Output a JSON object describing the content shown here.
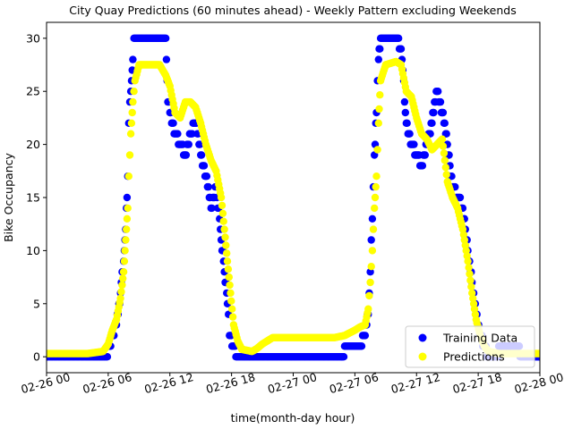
{
  "chart_data": {
    "type": "scatter",
    "title": "City Quay Predictions (60 minutes ahead) - Weekly Pattern excluding Weekends",
    "xlabel": "time(month-day hour)",
    "ylabel": "Bike Occupancy",
    "xlim": [
      0,
      48
    ],
    "ylim": [
      -1.5,
      31.5
    ],
    "x_ticks": [
      {
        "value": 0,
        "label": "02-26 00"
      },
      {
        "value": 6,
        "label": "02-26 06"
      },
      {
        "value": 12,
        "label": "02-26 12"
      },
      {
        "value": 18,
        "label": "02-26 18"
      },
      {
        "value": 24,
        "label": "02-27 00"
      },
      {
        "value": 30,
        "label": "02-27 06"
      },
      {
        "value": 36,
        "label": "02-27 12"
      },
      {
        "value": 42,
        "label": "02-27 18"
      },
      {
        "value": 48,
        "label": "02-28 00"
      }
    ],
    "y_ticks": [
      0,
      5,
      10,
      15,
      20,
      25,
      30
    ],
    "grid": false,
    "legend_position": "lower right",
    "x_unit_note": "hours since 02-26 00",
    "series": [
      {
        "name": "Training Data",
        "color": "#0000ff",
        "points": [
          [
            0,
            0
          ],
          [
            2,
            0
          ],
          [
            4,
            0
          ],
          [
            5.5,
            0
          ],
          [
            6,
            0.5
          ],
          [
            6.4,
            2
          ],
          [
            6.8,
            3
          ],
          [
            7.2,
            6
          ],
          [
            7.5,
            9
          ],
          [
            7.7,
            12
          ],
          [
            7.9,
            17
          ],
          [
            8.0,
            22
          ],
          [
            8.2,
            25
          ],
          [
            8.4,
            28
          ],
          [
            8.5,
            30
          ],
          [
            9,
            30
          ],
          [
            10,
            30
          ],
          [
            11,
            30
          ],
          [
            11.6,
            30
          ],
          [
            11.8,
            24
          ],
          [
            12,
            23
          ],
          [
            12.5,
            21
          ],
          [
            13,
            20
          ],
          [
            13.5,
            19
          ],
          [
            14,
            21
          ],
          [
            14.5,
            22
          ],
          [
            15,
            19
          ],
          [
            15.5,
            17
          ],
          [
            16,
            14
          ],
          [
            16.5,
            16
          ],
          [
            17,
            11
          ],
          [
            17.3,
            8
          ],
          [
            17.6,
            5
          ],
          [
            17.8,
            2
          ],
          [
            18.2,
            1
          ],
          [
            18.5,
            0
          ],
          [
            19,
            0
          ],
          [
            20,
            0
          ],
          [
            21,
            0
          ],
          [
            22,
            0
          ],
          [
            23,
            0
          ],
          [
            24,
            0
          ],
          [
            25,
            0
          ],
          [
            26,
            0
          ],
          [
            27,
            0
          ],
          [
            28,
            0
          ],
          [
            29,
            0.5
          ],
          [
            30,
            1
          ],
          [
            30.5,
            1
          ],
          [
            31,
            2
          ],
          [
            31.3,
            4
          ],
          [
            31.5,
            8
          ],
          [
            31.7,
            13
          ],
          [
            31.9,
            19
          ],
          [
            32.1,
            23
          ],
          [
            32.3,
            28
          ],
          [
            32.5,
            30
          ],
          [
            33,
            30
          ],
          [
            34,
            30
          ],
          [
            34.5,
            29
          ],
          [
            35,
            22
          ],
          [
            35.5,
            20
          ],
          [
            36,
            19
          ],
          [
            36.5,
            18
          ],
          [
            37,
            20
          ],
          [
            37.5,
            22
          ],
          [
            38,
            25
          ],
          [
            38.5,
            23
          ],
          [
            39,
            20
          ],
          [
            39.5,
            16
          ],
          [
            40,
            15
          ],
          [
            40.5,
            14
          ],
          [
            41,
            10
          ],
          [
            41.4,
            7
          ],
          [
            41.8,
            4
          ],
          [
            42.2,
            2
          ],
          [
            42.6,
            1
          ],
          [
            43,
            0
          ],
          [
            44,
            0.5
          ],
          [
            45,
            1
          ],
          [
            46,
            0.5
          ],
          [
            47,
            0
          ],
          [
            48,
            0
          ]
        ]
      },
      {
        "name": "Predictions",
        "color": "#ffff00",
        "points": [
          [
            0,
            0.3
          ],
          [
            2,
            0.3
          ],
          [
            4,
            0.3
          ],
          [
            5.5,
            0.5
          ],
          [
            6,
            1.2
          ],
          [
            6.4,
            2.5
          ],
          [
            6.8,
            3.5
          ],
          [
            7.2,
            5.5
          ],
          [
            7.5,
            8
          ],
          [
            7.7,
            11
          ],
          [
            7.9,
            14
          ],
          [
            8.0,
            17
          ],
          [
            8.2,
            21
          ],
          [
            8.4,
            24
          ],
          [
            8.6,
            26
          ],
          [
            9,
            27.5
          ],
          [
            10,
            27.5
          ],
          [
            11,
            27.5
          ],
          [
            11.6,
            26.5
          ],
          [
            12,
            25.5
          ],
          [
            12.5,
            23
          ],
          [
            13,
            22.5
          ],
          [
            13.5,
            24
          ],
          [
            14,
            24
          ],
          [
            14.5,
            23.5
          ],
          [
            15,
            22
          ],
          [
            15.5,
            20
          ],
          [
            16,
            18.5
          ],
          [
            16.5,
            17.5
          ],
          [
            17,
            15
          ],
          [
            17.3,
            12
          ],
          [
            17.6,
            9
          ],
          [
            17.9,
            6
          ],
          [
            18.2,
            3
          ],
          [
            18.6,
            1.5
          ],
          [
            19,
            0.7
          ],
          [
            20,
            0.5
          ],
          [
            20.5,
            0.8
          ],
          [
            21,
            1.2
          ],
          [
            22,
            1.8
          ],
          [
            24,
            1.8
          ],
          [
            26,
            1.8
          ],
          [
            28,
            1.8
          ],
          [
            29,
            2
          ],
          [
            30,
            2.5
          ],
          [
            30.5,
            2.8
          ],
          [
            31,
            3
          ],
          [
            31.3,
            4.5
          ],
          [
            31.5,
            7
          ],
          [
            31.7,
            10
          ],
          [
            31.9,
            14
          ],
          [
            32.1,
            17
          ],
          [
            32.3,
            22
          ],
          [
            32.5,
            26
          ],
          [
            33,
            27.5
          ],
          [
            34,
            27.8
          ],
          [
            34.5,
            27.5
          ],
          [
            35,
            25
          ],
          [
            35.5,
            24.5
          ],
          [
            36,
            22.5
          ],
          [
            36.5,
            21
          ],
          [
            37,
            20.5
          ],
          [
            37.5,
            19.5
          ],
          [
            38,
            20
          ],
          [
            38.5,
            20.5
          ],
          [
            39,
            16.5
          ],
          [
            39.5,
            15
          ],
          [
            40,
            14
          ],
          [
            40.5,
            12
          ],
          [
            41,
            9
          ],
          [
            41.4,
            6
          ],
          [
            41.8,
            3.5
          ],
          [
            42.2,
            2
          ],
          [
            42.6,
            1
          ],
          [
            43,
            0.5
          ],
          [
            44,
            0.3
          ],
          [
            46,
            0.3
          ],
          [
            48,
            0.3
          ]
        ]
      }
    ]
  }
}
